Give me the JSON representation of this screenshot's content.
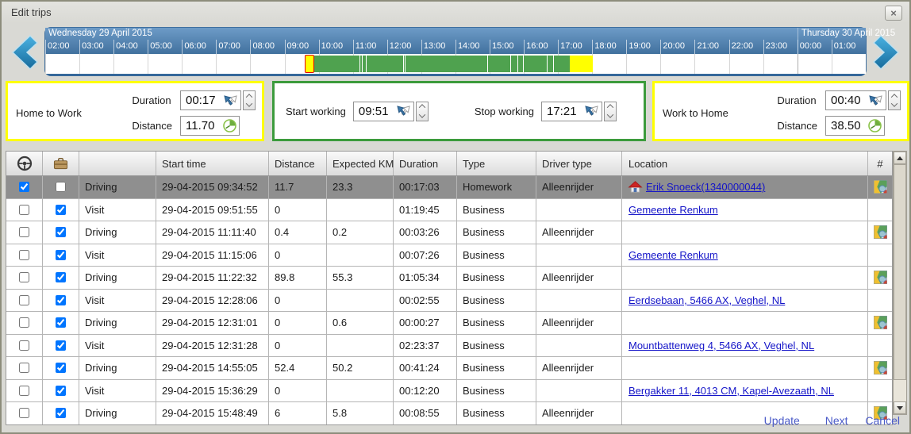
{
  "window": {
    "title": "Edit trips",
    "close_glyph": "×"
  },
  "colors": {
    "accent_yellow": "#ffff00",
    "accent_green": "#3c9b3c",
    "timeline_green": "#4fa24f",
    "timeline_yellow": "#ffff00",
    "selected_row": "#8f8f8f",
    "link": "#1414c8",
    "footer_link": "#4a5ac8",
    "tl_head_top": "#6d9bc7",
    "tl_head_bottom": "#41719e"
  },
  "icons": {
    "nav_left": "chevron-left-icon",
    "nav_right": "chevron-right-icon",
    "close": "close-icon",
    "col0": "steering-wheel-icon",
    "col1": "briefcase-icon",
    "time_field": "set-time-arrows-icon",
    "distance_field": "gauge-icon",
    "row_home": "home-icon",
    "row_map": "map-zoom-icon"
  },
  "timeline": {
    "total_minutes": 1440,
    "days": [
      {
        "label": "Wednesday 29 April 2015",
        "hours": [
          "02:00",
          "03:00",
          "04:00",
          "05:00",
          "06:00",
          "07:00",
          "08:00",
          "09:00",
          "10:00",
          "11:00",
          "12:00",
          "13:00",
          "14:00",
          "15:00",
          "16:00",
          "17:00",
          "18:00",
          "19:00",
          "20:00",
          "21:00",
          "22:00",
          "23:00"
        ]
      },
      {
        "label": "Thursday 30 April 2015",
        "hours": [
          "00:00",
          "01:00"
        ]
      }
    ],
    "segments": [
      {
        "kind": "home_to_work",
        "start_min": 454.9,
        "end_min": 471.9
      },
      {
        "kind": "work",
        "start_min": 471.9,
        "end_min": 551.7
      },
      {
        "kind": "work",
        "start_min": 551.7,
        "end_min": 555.1
      },
      {
        "kind": "work",
        "start_min": 555.1,
        "end_min": 562.5
      },
      {
        "kind": "work",
        "start_min": 562.5,
        "end_min": 628.1
      },
      {
        "kind": "work",
        "start_min": 628.1,
        "end_min": 631.0
      },
      {
        "kind": "work",
        "start_min": 631.0,
        "end_min": 631.5
      },
      {
        "kind": "work",
        "start_min": 631.5,
        "end_min": 775.1
      },
      {
        "kind": "work",
        "start_min": 775.1,
        "end_min": 816.5
      },
      {
        "kind": "work",
        "start_min": 816.5,
        "end_min": 828.8
      },
      {
        "kind": "work",
        "start_min": 828.8,
        "end_min": 837.7
      },
      {
        "kind": "work",
        "start_min": 837.7,
        "end_min": 880.0
      },
      {
        "kind": "work",
        "start_min": 880.0,
        "end_min": 891.0
      },
      {
        "kind": "work",
        "start_min": 891.0,
        "end_min": 921.0
      },
      {
        "kind": "work_to_home",
        "start_min": 921.0,
        "end_min": 961.0
      }
    ]
  },
  "panels": {
    "home_to_work": {
      "title": "Home to Work",
      "duration_label": "Duration",
      "duration": "00:17",
      "distance_label": "Distance",
      "distance": "11.70"
    },
    "working": {
      "start_label": "Start working",
      "start": "09:51",
      "stop_label": "Stop working",
      "stop": "17:21"
    },
    "work_to_home": {
      "title": "Work to Home",
      "duration_label": "Duration",
      "duration": "00:40",
      "distance_label": "Distance",
      "distance": "38.50"
    }
  },
  "table": {
    "columns": {
      "activity": "",
      "start_time": "Start time",
      "distance": "Distance",
      "expected_km": "Expected KM",
      "duration": "Duration",
      "type": "Type",
      "driver_type": "Driver type",
      "location": "Location",
      "num": "#"
    },
    "rows": [
      {
        "selected": true,
        "cb_drive": true,
        "cb_business": false,
        "activity": "Driving",
        "start_time": "29-04-2015 09:34:52",
        "distance": "11.7",
        "expected_km": "23.3",
        "duration": "00:17:03",
        "trip_type": "Homework",
        "driver_type": "Alleenrijder",
        "location": "Erik Snoeck(1340000044)",
        "home": true,
        "map": true
      },
      {
        "cb_drive": false,
        "cb_business": true,
        "activity": "Visit",
        "start_time": "29-04-2015 09:51:55",
        "distance": "0",
        "expected_km": "",
        "duration": "01:19:45",
        "trip_type": "Business",
        "driver_type": "",
        "location": "Gemeente Renkum",
        "home": false,
        "map": false
      },
      {
        "cb_drive": false,
        "cb_business": true,
        "activity": "Driving",
        "start_time": "29-04-2015 11:11:40",
        "distance": "0.4",
        "expected_km": "0.2",
        "duration": "00:03:26",
        "trip_type": "Business",
        "driver_type": "Alleenrijder",
        "location": "",
        "home": false,
        "map": true
      },
      {
        "cb_drive": false,
        "cb_business": true,
        "activity": "Visit",
        "start_time": "29-04-2015 11:15:06",
        "distance": "0",
        "expected_km": "",
        "duration": "00:07:26",
        "trip_type": "Business",
        "driver_type": "",
        "location": "Gemeente Renkum",
        "home": false,
        "map": false
      },
      {
        "cb_drive": false,
        "cb_business": true,
        "activity": "Driving",
        "start_time": "29-04-2015 11:22:32",
        "distance": "89.8",
        "expected_km": "55.3",
        "duration": "01:05:34",
        "trip_type": "Business",
        "driver_type": "Alleenrijder",
        "location": "",
        "home": false,
        "map": true
      },
      {
        "cb_drive": false,
        "cb_business": true,
        "activity": "Visit",
        "start_time": "29-04-2015 12:28:06",
        "distance": "0",
        "expected_km": "",
        "duration": "00:02:55",
        "trip_type": "Business",
        "driver_type": "",
        "location": "Eerdsebaan, 5466 AX, Veghel, NL",
        "home": false,
        "map": false
      },
      {
        "cb_drive": false,
        "cb_business": true,
        "activity": "Driving",
        "start_time": "29-04-2015 12:31:01",
        "distance": "0",
        "expected_km": "0.6",
        "duration": "00:00:27",
        "trip_type": "Business",
        "driver_type": "Alleenrijder",
        "location": "",
        "home": false,
        "map": true
      },
      {
        "cb_drive": false,
        "cb_business": true,
        "activity": "Visit",
        "start_time": "29-04-2015 12:31:28",
        "distance": "0",
        "expected_km": "",
        "duration": "02:23:37",
        "trip_type": "Business",
        "driver_type": "",
        "location": "Mountbattenweg 4, 5466 AX, Veghel, NL",
        "home": false,
        "map": false
      },
      {
        "cb_drive": false,
        "cb_business": true,
        "activity": "Driving",
        "start_time": "29-04-2015 14:55:05",
        "distance": "52.4",
        "expected_km": "50.2",
        "duration": "00:41:24",
        "trip_type": "Business",
        "driver_type": "Alleenrijder",
        "location": "",
        "home": false,
        "map": true
      },
      {
        "cb_drive": false,
        "cb_business": true,
        "activity": "Visit",
        "start_time": "29-04-2015 15:36:29",
        "distance": "0",
        "expected_km": "",
        "duration": "00:12:20",
        "trip_type": "Business",
        "driver_type": "",
        "location": "Bergakker 11, 4013 CM, Kapel-Avezaath, NL",
        "home": false,
        "map": false
      },
      {
        "cb_drive": false,
        "cb_business": true,
        "activity": "Driving",
        "start_time": "29-04-2015 15:48:49",
        "distance": "6",
        "expected_km": "5.8",
        "duration": "00:08:55",
        "trip_type": "Business",
        "driver_type": "Alleenrijder",
        "location": "",
        "home": false,
        "map": true
      }
    ]
  },
  "footer": {
    "update": "Update",
    "next": "Next",
    "cancel": "Cancel"
  }
}
